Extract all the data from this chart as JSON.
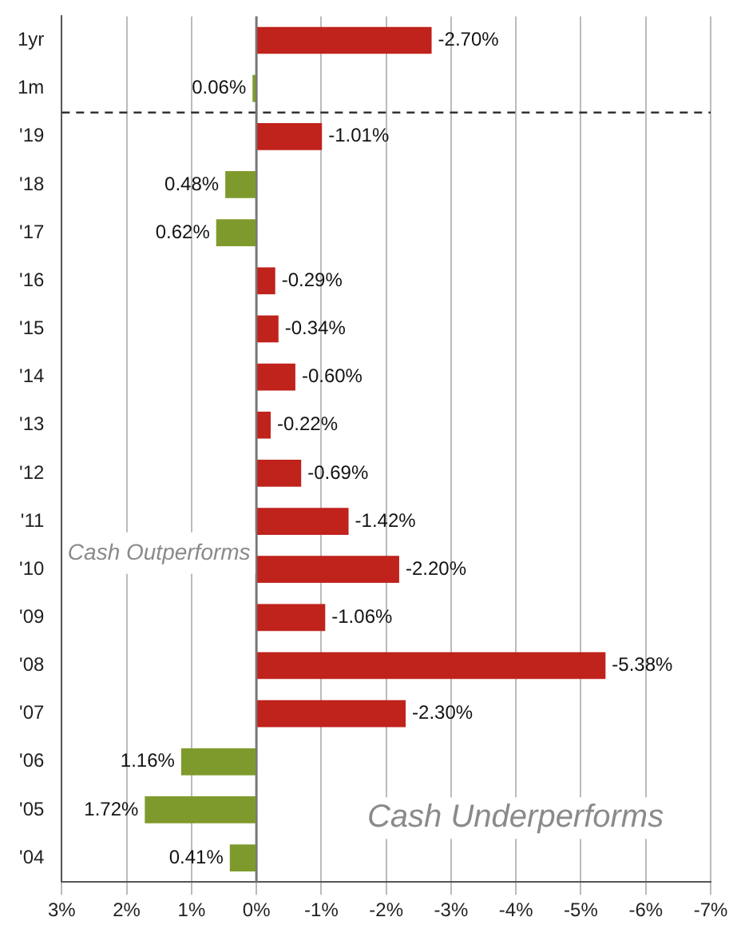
{
  "chart_data": {
    "type": "bar",
    "orientation": "horizontal",
    "categories": [
      "1yr",
      "1m",
      "'19",
      "'18",
      "'17",
      "'16",
      "'15",
      "'14",
      "'13",
      "'12",
      "'11",
      "'10",
      "'09",
      "'08",
      "'07",
      "'06",
      "'05",
      "'04"
    ],
    "values": [
      -2.7,
      0.06,
      -1.01,
      0.48,
      0.62,
      -0.29,
      -0.34,
      -0.6,
      -0.22,
      -0.69,
      -1.42,
      -2.2,
      -1.06,
      -5.38,
      -2.3,
      1.16,
      1.72,
      0.41
    ],
    "colors": [
      "#c0221c",
      "#7f9a2c",
      "#c0221c",
      "#7f9a2c",
      "#7f9a2c",
      "#c0221c",
      "#c0221c",
      "#c0221c",
      "#c0221c",
      "#c0221c",
      "#c0221c",
      "#c0221c",
      "#c0221c",
      "#c0221c",
      "#c0221c",
      "#7f9a2c",
      "#7f9a2c",
      "#7f9a2c"
    ],
    "value_labels": [
      "-2.70%",
      "0.06%",
      "-1.01%",
      "0.48%",
      "0.62%",
      "-0.29%",
      "-0.34%",
      "-0.60%",
      "-0.22%",
      "-0.69%",
      "-1.42%",
      "-2.20%",
      "-1.06%",
      "-5.38%",
      "-2.30%",
      "1.16%",
      "1.72%",
      "0.41%"
    ],
    "xlim": [
      3,
      -7
    ],
    "xticks": [
      {
        "value": 3,
        "label": "3%"
      },
      {
        "value": 2,
        "label": "2%"
      },
      {
        "value": 1,
        "label": "1%"
      },
      {
        "value": 0,
        "label": "0%"
      },
      {
        "value": -1,
        "label": "-1%"
      },
      {
        "value": -2,
        "label": "-2%"
      },
      {
        "value": -3,
        "label": "-3%"
      },
      {
        "value": -4,
        "label": "-4%"
      },
      {
        "value": -5,
        "label": "-5%"
      },
      {
        "value": -6,
        "label": "-6%"
      },
      {
        "value": -7,
        "label": "-7%"
      }
    ],
    "grid": "x",
    "ref_lines": [
      {
        "axis": "y",
        "value": "1m",
        "line_style": "dashed",
        "color": "#333333"
      }
    ],
    "annotations": [
      "Cash Outperforms",
      "Cash Underperforms"
    ]
  }
}
